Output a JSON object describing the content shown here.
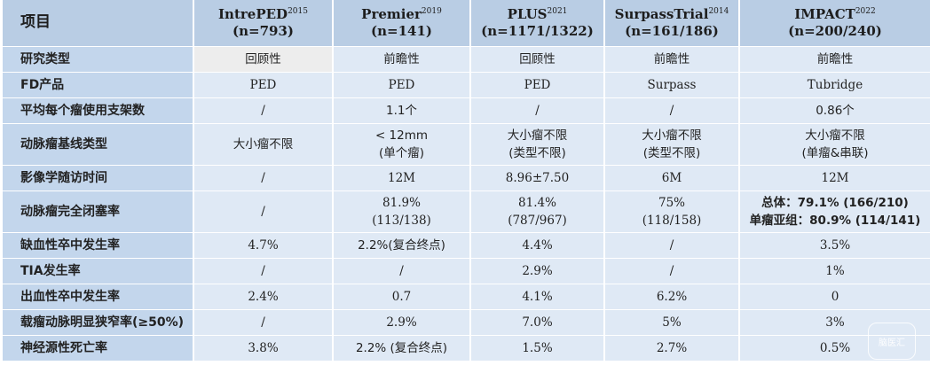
{
  "header": {
    "item": "项目",
    "cols": [
      {
        "name": "IntrePED",
        "year": "2015",
        "n": "(n=793)"
      },
      {
        "name": "Premier",
        "year": "2019",
        "n": "(n=141)"
      },
      {
        "name": "PLUS",
        "year": "2021",
        "n": "(n=1171/1322)"
      },
      {
        "name": "SurpassTrial",
        "year": "2014",
        "n": "(n=161/186)"
      },
      {
        "name": "IMPACT",
        "year": "2022",
        "n": "(n=200/240)"
      }
    ]
  },
  "rows": [
    {
      "label": "研究类型",
      "cells": [
        [
          "回顾性"
        ],
        [
          "前瞻性"
        ],
        [
          "回顾性"
        ],
        [
          "前瞻性"
        ],
        [
          "前瞻性"
        ]
      ]
    },
    {
      "label": "FD产品",
      "cells": [
        [
          "PED"
        ],
        [
          "PED"
        ],
        [
          "PED"
        ],
        [
          "Surpass"
        ],
        [
          "Tubridge"
        ]
      ]
    },
    {
      "label": "平均每个瘤使用支架数",
      "cells": [
        [
          "/"
        ],
        [
          "1.1个"
        ],
        [
          "/"
        ],
        [
          "/"
        ],
        [
          "0.86个"
        ]
      ]
    },
    {
      "label": "动脉瘤基线类型",
      "cells": [
        [
          "大小瘤不限"
        ],
        [
          "< 12mm",
          "(单个瘤)"
        ],
        [
          "大小瘤不限",
          "(类型不限)"
        ],
        [
          "大小瘤不限",
          "(类型不限)"
        ],
        [
          "大小瘤不限",
          "(单瘤&串联)"
        ]
      ]
    },
    {
      "label": "影像学随访时间",
      "cells": [
        [
          "/"
        ],
        [
          "12M"
        ],
        [
          "8.96±7.50"
        ],
        [
          "6M"
        ],
        [
          "12M"
        ]
      ]
    },
    {
      "label": "动脉瘤完全闭塞率",
      "cells": [
        [
          "/"
        ],
        [
          "81.9%",
          "(113/138)"
        ],
        [
          "81.4%",
          "(787/967)"
        ],
        [
          "75%",
          "(118/158)"
        ],
        [
          "总体：79.1% (166/210)",
          "单瘤亚组：80.9% (114/141)"
        ]
      ]
    },
    {
      "label": "缺血性卒中发生率",
      "cells": [
        [
          "4.7%"
        ],
        [
          "2.2%(复合终点)"
        ],
        [
          "4.4%"
        ],
        [
          "/"
        ],
        [
          "3.5%"
        ]
      ]
    },
    {
      "label": "TIA发生率",
      "cells": [
        [
          "/"
        ],
        [
          "/"
        ],
        [
          "2.9%"
        ],
        [
          "/"
        ],
        [
          "1%"
        ]
      ]
    },
    {
      "label": "出血性卒中发生率",
      "cells": [
        [
          "2.4%"
        ],
        [
          "0.7"
        ],
        [
          "4.1%"
        ],
        [
          "6.2%"
        ],
        [
          "0"
        ]
      ]
    },
    {
      "label": "载瘤动脉明显狭窄率(≥50%)",
      "cells": [
        [
          "/"
        ],
        [
          "2.9%"
        ],
        [
          "7.0%"
        ],
        [
          "5%"
        ],
        [
          "3%"
        ]
      ]
    },
    {
      "label": "神经源性死亡率",
      "cells": [
        [
          "3.8%"
        ],
        [
          "2.2% (复合终点)"
        ],
        [
          "1.5%"
        ],
        [
          "2.7%"
        ],
        [
          "0.5%"
        ]
      ]
    }
  ],
  "watermark": "脑医汇"
}
